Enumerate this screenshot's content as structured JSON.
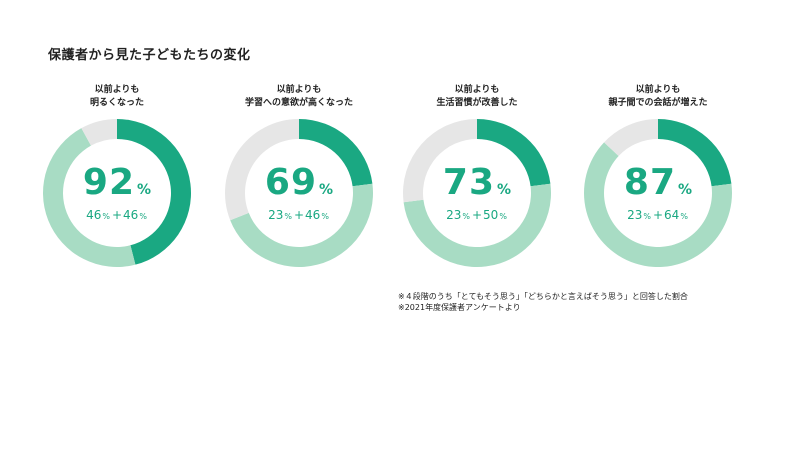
{
  "title": "保護者から見た子どもたちの変化",
  "colors": {
    "dark": "#1aa882",
    "light": "#a8dcc4",
    "rest": "#e6e6e6",
    "text": "#1aa882"
  },
  "notes": [
    "※４段階のうち「とてもそう思う」「どちらかと言えばそう思う」と回答した割合",
    "※2021年度保護者アンケートより"
  ],
  "chart_data": [
    {
      "type": "pie",
      "title_lines": [
        "以前よりも",
        "明るくなった"
      ],
      "total": 92,
      "segments": [
        {
          "label": "とてもそう思う",
          "value": 46
        },
        {
          "label": "どちらかと言えばそう思う",
          "value": 46
        }
      ],
      "unit": "%"
    },
    {
      "type": "pie",
      "title_lines": [
        "以前よりも",
        "学習への意欲が高くなった"
      ],
      "total": 69,
      "segments": [
        {
          "label": "とてもそう思う",
          "value": 23
        },
        {
          "label": "どちらかと言えばそう思う",
          "value": 46
        }
      ],
      "unit": "%"
    },
    {
      "type": "pie",
      "title_lines": [
        "以前よりも",
        "生活習慣が改善した"
      ],
      "total": 73,
      "segments": [
        {
          "label": "とてもそう思う",
          "value": 23
        },
        {
          "label": "どちらかと言えばそう思う",
          "value": 50
        }
      ],
      "unit": "%"
    },
    {
      "type": "pie",
      "title_lines": [
        "以前よりも",
        "親子間での会話が増えた"
      ],
      "total": 87,
      "segments": [
        {
          "label": "とてもそう思う",
          "value": 23
        },
        {
          "label": "どちらかと言えばそう思う",
          "value": 64
        }
      ],
      "unit": "%"
    }
  ]
}
